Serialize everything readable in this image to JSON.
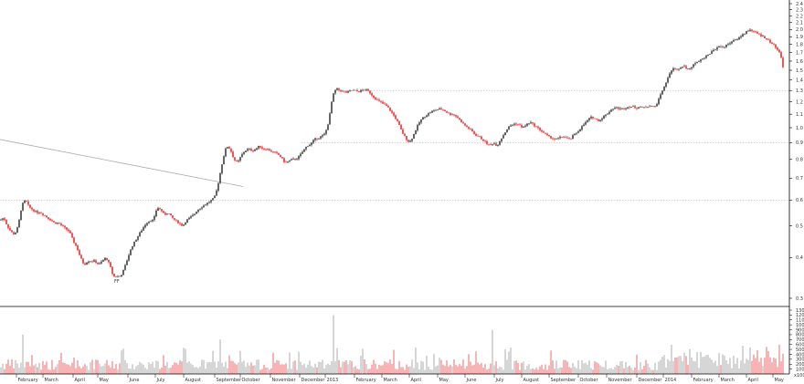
{
  "chart_data": {
    "type": "candlestick",
    "colors": {
      "up": "#222222",
      "down": "#dd1111",
      "volume_up": "#999999",
      "volume_down": "#ee4444",
      "trendline": "#aaaaaa",
      "support": "#bbbbbb"
    },
    "price_axis": {
      "scale": "log",
      "range": [
        0.29,
        2.45
      ],
      "ticks": [
        "2.4",
        "2.3",
        "2.2",
        "2.1",
        "2.0",
        "1.9",
        "1.8",
        "1.7",
        "1.6",
        "1.5",
        "1.4",
        "1.3",
        "1.2",
        "1.1",
        "1.0",
        "0.9",
        "0.8",
        "0.7",
        "0.6",
        "0.5",
        "0.4",
        "0.3"
      ]
    },
    "volume_axis": {
      "range": [
        0,
        13000
      ],
      "ticks": [
        "13000",
        "12000",
        "11000",
        "10000",
        "9000",
        "8000",
        "7000",
        "6000",
        "5000",
        "4000",
        "3000",
        "2000",
        "1000"
      ],
      "unit_label": "x1000"
    },
    "x_axis": {
      "labels": [
        "February",
        "March",
        "April",
        "May",
        "June",
        "July",
        "August",
        "September",
        "October",
        "November",
        "December",
        "2013",
        "February",
        "March",
        "April",
        "May",
        "June",
        "July",
        "August",
        "September",
        "October",
        "November",
        "December",
        "2014",
        "February",
        "March",
        "April",
        "May"
      ]
    },
    "annotations": {
      "low_marker": "FF",
      "support_levels": [
        1.3,
        0.9,
        0.6
      ],
      "trendline": {
        "from": 0.92,
        "to": 0.66
      }
    },
    "price_path": [
      [
        0,
        0.52
      ],
      [
        4,
        0.53
      ],
      [
        8,
        0.5
      ],
      [
        12,
        0.48
      ],
      [
        16,
        0.47
      ],
      [
        20,
        0.5
      ],
      [
        24,
        0.58
      ],
      [
        28,
        0.6
      ],
      [
        32,
        0.57
      ],
      [
        36,
        0.56
      ],
      [
        40,
        0.55
      ],
      [
        44,
        0.55
      ],
      [
        48,
        0.54
      ],
      [
        52,
        0.53
      ],
      [
        56,
        0.52
      ],
      [
        60,
        0.51
      ],
      [
        64,
        0.51
      ],
      [
        68,
        0.5
      ],
      [
        72,
        0.49
      ],
      [
        76,
        0.48
      ],
      [
        80,
        0.45
      ],
      [
        84,
        0.43
      ],
      [
        88,
        0.4
      ],
      [
        92,
        0.38
      ],
      [
        96,
        0.39
      ],
      [
        100,
        0.39
      ],
      [
        104,
        0.39
      ],
      [
        108,
        0.38
      ],
      [
        112,
        0.39
      ],
      [
        116,
        0.4
      ],
      [
        120,
        0.38
      ],
      [
        124,
        0.35
      ],
      [
        128,
        0.35
      ],
      [
        132,
        0.35
      ],
      [
        136,
        0.37
      ],
      [
        140,
        0.4
      ],
      [
        144,
        0.43
      ],
      [
        148,
        0.45
      ],
      [
        152,
        0.47
      ],
      [
        156,
        0.49
      ],
      [
        160,
        0.51
      ],
      [
        164,
        0.52
      ],
      [
        168,
        0.52
      ],
      [
        172,
        0.57
      ],
      [
        176,
        0.56
      ],
      [
        180,
        0.54
      ],
      [
        184,
        0.55
      ],
      [
        188,
        0.53
      ],
      [
        192,
        0.52
      ],
      [
        196,
        0.51
      ],
      [
        200,
        0.5
      ],
      [
        204,
        0.52
      ],
      [
        208,
        0.53
      ],
      [
        212,
        0.54
      ],
      [
        216,
        0.56
      ],
      [
        220,
        0.57
      ],
      [
        224,
        0.58
      ],
      [
        228,
        0.59
      ],
      [
        232,
        0.6
      ],
      [
        236,
        0.62
      ],
      [
        240,
        0.7
      ],
      [
        244,
        0.8
      ],
      [
        248,
        0.88
      ],
      [
        252,
        0.86
      ],
      [
        256,
        0.8
      ],
      [
        260,
        0.78
      ],
      [
        264,
        0.82
      ],
      [
        268,
        0.85
      ],
      [
        272,
        0.86
      ],
      [
        276,
        0.85
      ],
      [
        280,
        0.86
      ],
      [
        284,
        0.88
      ],
      [
        288,
        0.86
      ],
      [
        292,
        0.86
      ],
      [
        296,
        0.85
      ],
      [
        300,
        0.84
      ],
      [
        304,
        0.83
      ],
      [
        308,
        0.81
      ],
      [
        312,
        0.78
      ],
      [
        316,
        0.79
      ],
      [
        320,
        0.8
      ],
      [
        324,
        0.8
      ],
      [
        328,
        0.82
      ],
      [
        332,
        0.85
      ],
      [
        336,
        0.88
      ],
      [
        340,
        0.89
      ],
      [
        344,
        0.92
      ],
      [
        348,
        0.93
      ],
      [
        352,
        0.94
      ],
      [
        356,
        0.96
      ],
      [
        360,
        1.05
      ],
      [
        364,
        1.25
      ],
      [
        368,
        1.32
      ],
      [
        372,
        1.3
      ],
      [
        376,
        1.29
      ],
      [
        380,
        1.28
      ],
      [
        384,
        1.3
      ],
      [
        388,
        1.3
      ],
      [
        392,
        1.29
      ],
      [
        396,
        1.3
      ],
      [
        400,
        1.31
      ],
      [
        404,
        1.29
      ],
      [
        408,
        1.25
      ],
      [
        412,
        1.22
      ],
      [
        416,
        1.2
      ],
      [
        420,
        1.18
      ],
      [
        424,
        1.16
      ],
      [
        428,
        1.12
      ],
      [
        432,
        1.08
      ],
      [
        436,
        1.03
      ],
      [
        440,
        0.97
      ],
      [
        444,
        0.93
      ],
      [
        448,
        0.9
      ],
      [
        452,
        0.94
      ],
      [
        456,
        1.0
      ],
      [
        460,
        1.05
      ],
      [
        464,
        1.08
      ],
      [
        468,
        1.1
      ],
      [
        472,
        1.12
      ],
      [
        476,
        1.13
      ],
      [
        480,
        1.14
      ],
      [
        484,
        1.14
      ],
      [
        488,
        1.12
      ],
      [
        492,
        1.1
      ],
      [
        496,
        1.1
      ],
      [
        500,
        1.08
      ],
      [
        504,
        1.05
      ],
      [
        508,
        1.02
      ],
      [
        512,
        1.0
      ],
      [
        516,
        0.98
      ],
      [
        520,
        0.95
      ],
      [
        524,
        0.94
      ],
      [
        528,
        0.92
      ],
      [
        532,
        0.9
      ],
      [
        536,
        0.88
      ],
      [
        540,
        0.9
      ],
      [
        544,
        0.88
      ],
      [
        548,
        0.92
      ],
      [
        552,
        0.96
      ],
      [
        556,
        1.0
      ],
      [
        560,
        1.02
      ],
      [
        564,
        1.03
      ],
      [
        568,
        1.02
      ],
      [
        572,
        1.0
      ],
      [
        576,
        1.02
      ],
      [
        580,
        1.04
      ],
      [
        584,
        1.02
      ],
      [
        588,
        1.0
      ],
      [
        592,
        0.98
      ],
      [
        596,
        0.96
      ],
      [
        600,
        0.94
      ],
      [
        604,
        0.93
      ],
      [
        608,
        0.92
      ],
      [
        612,
        0.93
      ],
      [
        616,
        0.94
      ],
      [
        620,
        0.93
      ],
      [
        624,
        0.92
      ],
      [
        628,
        0.95
      ],
      [
        632,
        0.97
      ],
      [
        636,
        1.0
      ],
      [
        640,
        1.03
      ],
      [
        644,
        1.06
      ],
      [
        648,
        1.08
      ],
      [
        652,
        1.06
      ],
      [
        656,
        1.05
      ],
      [
        660,
        1.08
      ],
      [
        664,
        1.1
      ],
      [
        668,
        1.13
      ],
      [
        672,
        1.15
      ],
      [
        676,
        1.15
      ],
      [
        680,
        1.14
      ],
      [
        684,
        1.15
      ],
      [
        688,
        1.16
      ],
      [
        692,
        1.16
      ],
      [
        696,
        1.15
      ],
      [
        700,
        1.16
      ],
      [
        704,
        1.15
      ],
      [
        708,
        1.16
      ],
      [
        712,
        1.17
      ],
      [
        716,
        1.15
      ],
      [
        720,
        1.2
      ],
      [
        724,
        1.28
      ],
      [
        728,
        1.35
      ],
      [
        732,
        1.45
      ],
      [
        736,
        1.52
      ],
      [
        740,
        1.5
      ],
      [
        744,
        1.52
      ],
      [
        748,
        1.55
      ],
      [
        752,
        1.5
      ],
      [
        756,
        1.53
      ],
      [
        760,
        1.57
      ],
      [
        764,
        1.6
      ],
      [
        768,
        1.62
      ],
      [
        772,
        1.65
      ],
      [
        776,
        1.68
      ],
      [
        780,
        1.72
      ],
      [
        784,
        1.75
      ],
      [
        788,
        1.78
      ],
      [
        792,
        1.76
      ],
      [
        796,
        1.8
      ],
      [
        800,
        1.83
      ],
      [
        804,
        1.85
      ],
      [
        808,
        1.88
      ],
      [
        812,
        1.92
      ],
      [
        816,
        1.96
      ],
      [
        820,
        2.0
      ],
      [
        824,
        1.98
      ],
      [
        828,
        1.95
      ],
      [
        832,
        1.92
      ],
      [
        836,
        1.9
      ],
      [
        840,
        1.86
      ],
      [
        844,
        1.82
      ],
      [
        848,
        1.78
      ],
      [
        852,
        1.72
      ],
      [
        856,
        1.62
      ],
      [
        858,
        1.45
      ]
    ],
    "volume_spikes": [
      [
        25,
        8000
      ],
      [
        241,
        7000
      ],
      [
        365,
        12000
      ],
      [
        539,
        9000
      ]
    ]
  }
}
